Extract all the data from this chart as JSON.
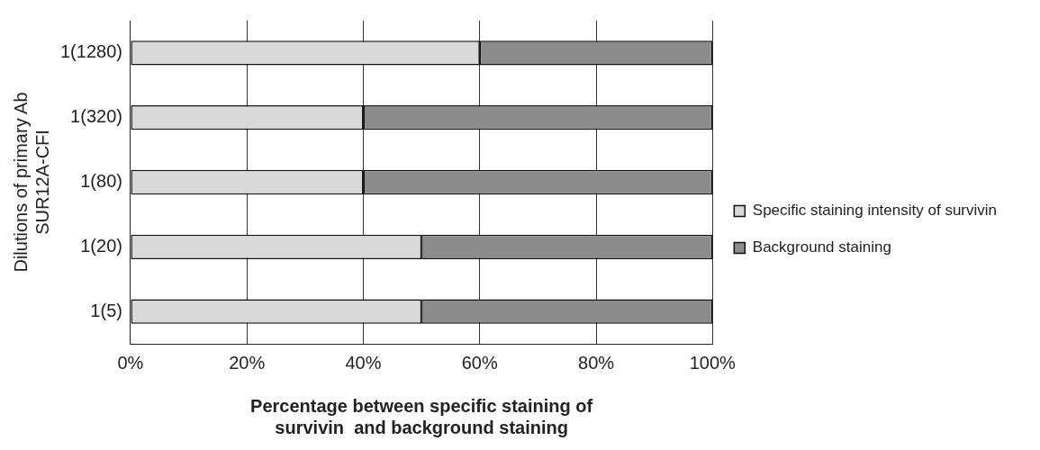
{
  "chart_data": {
    "type": "bar",
    "orientation": "horizontal",
    "stacked": true,
    "xlabel": "Percentage between specific staining of\nsurvivin  and background staining",
    "ylabel": "Dilutions of primary Ab\nSUR12A-CFI",
    "categories": [
      "1(1280)",
      "1(320)",
      "1(80)",
      "1(20)",
      "1(5)"
    ],
    "series": [
      {
        "name": "Specific staining intensity of survivin",
        "color": "#d9d9d9",
        "values": [
          60,
          40,
          40,
          50,
          50
        ]
      },
      {
        "name": "Background staining",
        "color": "#8c8c8c",
        "values": [
          40,
          60,
          60,
          50,
          50
        ]
      }
    ],
    "xlim": [
      0,
      100
    ],
    "xticks": [
      {
        "value": 0,
        "label": "0%"
      },
      {
        "value": 20,
        "label": "20%"
      },
      {
        "value": 40,
        "label": "40%"
      },
      {
        "value": 60,
        "label": "60%"
      },
      {
        "value": 80,
        "label": "80%"
      },
      {
        "value": 100,
        "label": "100%"
      }
    ],
    "grid": "x",
    "legend": "right"
  }
}
